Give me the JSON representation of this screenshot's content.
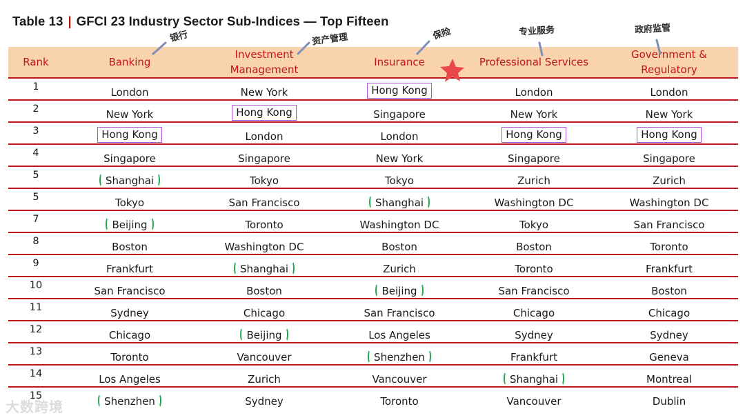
{
  "title": {
    "prefix": "Table 13",
    "separator": "|",
    "text": "GFCI 23 Industry Sector Sub-Indices — Top Fifteen"
  },
  "colors": {
    "header_bg": "#f9d3ad",
    "rule": "#c0141c",
    "highlight_box": "#b44fe0",
    "bracket": "#1fa84a",
    "star": "#e8484a"
  },
  "headers": [
    "Rank",
    "Banking",
    "Investment Management",
    "Insurance",
    "Professional Services",
    "Government & Regulatory"
  ],
  "annotations": {
    "banking": "银行",
    "investment": "资产管理",
    "insurance": "保险",
    "professional": "专业服务",
    "government": "政府监管"
  },
  "rows": [
    {
      "rank": "1",
      "banking": "London",
      "investment": "New York",
      "insurance": "Hong Kong",
      "professional": "London",
      "government": "London"
    },
    {
      "rank": "2",
      "banking": "New York",
      "investment": "Hong Kong",
      "insurance": "Singapore",
      "professional": "New York",
      "government": "New York"
    },
    {
      "rank": "3",
      "banking": "Hong Kong",
      "investment": "London",
      "insurance": "London",
      "professional": "Hong Kong",
      "government": "Hong Kong"
    },
    {
      "rank": "4",
      "banking": "Singapore",
      "investment": "Singapore",
      "insurance": "New York",
      "professional": "Singapore",
      "government": "Singapore"
    },
    {
      "rank": "5",
      "banking": "Shanghai",
      "investment": "Tokyo",
      "insurance": "Tokyo",
      "professional": "Zurich",
      "government": "Zurich"
    },
    {
      "rank": "5",
      "banking": "Tokyo",
      "investment": "San Francisco",
      "insurance": "Shanghai",
      "professional": "Washington DC",
      "government": "Washington DC"
    },
    {
      "rank": "7",
      "banking": "Beijing",
      "investment": "Toronto",
      "insurance": "Washington DC",
      "professional": "Tokyo",
      "government": "San Francisco"
    },
    {
      "rank": "8",
      "banking": "Boston",
      "investment": "Washington DC",
      "insurance": "Boston",
      "professional": "Boston",
      "government": "Toronto"
    },
    {
      "rank": "9",
      "banking": "Frankfurt",
      "investment": "Shanghai",
      "insurance": "Zurich",
      "professional": "Toronto",
      "government": "Frankfurt"
    },
    {
      "rank": "10",
      "banking": "San Francisco",
      "investment": "Boston",
      "insurance": "Beijing",
      "professional": "San Francisco",
      "government": "Boston"
    },
    {
      "rank": "11",
      "banking": "Sydney",
      "investment": "Chicago",
      "insurance": "San Francisco",
      "professional": "Chicago",
      "government": "Chicago"
    },
    {
      "rank": "12",
      "banking": "Chicago",
      "investment": "Beijing",
      "insurance": "Los Angeles",
      "professional": "Sydney",
      "government": "Sydney"
    },
    {
      "rank": "13",
      "banking": "Toronto",
      "investment": "Vancouver",
      "insurance": "Shenzhen",
      "professional": "Frankfurt",
      "government": "Geneva"
    },
    {
      "rank": "14",
      "banking": "Los Angeles",
      "investment": "Zurich",
      "insurance": "Vancouver",
      "professional": "Shanghai",
      "government": "Montreal"
    },
    {
      "rank": "15",
      "banking": "Shenzhen",
      "investment": "Sydney",
      "insurance": "Toronto",
      "professional": "Vancouver",
      "government": "Dublin"
    }
  ],
  "highlight_boxed": "Hong Kong",
  "highlight_bracketed": [
    "Shanghai",
    "Beijing",
    "Shenzhen"
  ],
  "watermark": "大数跨境"
}
